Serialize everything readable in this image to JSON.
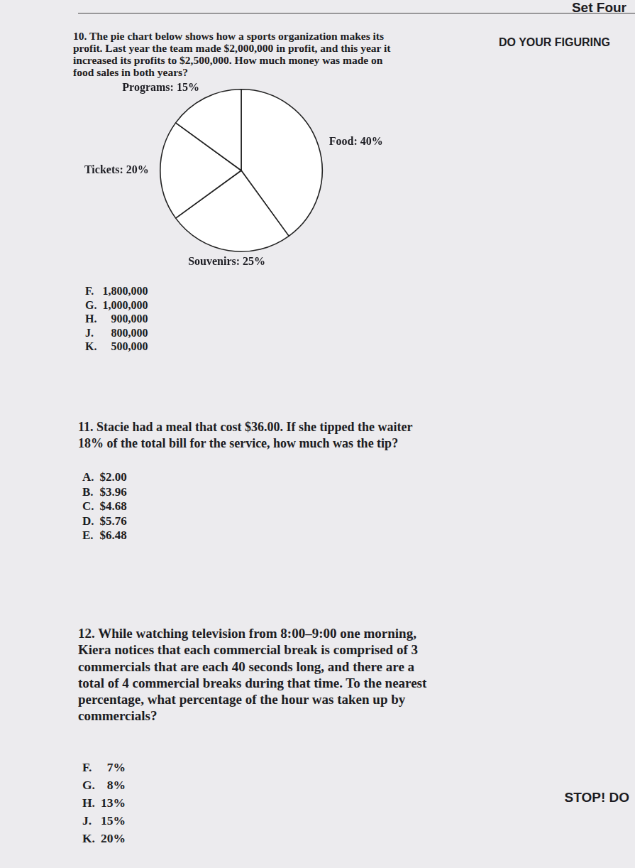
{
  "header": {
    "set": "Set Four",
    "side_note": "DO YOUR FIGURING",
    "stop": "STOP! DO"
  },
  "questions": [
    {
      "number": "10.",
      "text": "The pie chart below shows how a sports organization makes its profit. Last year the team made $2,000,000 in profit, and this year it increased its profits to $2,500,000. How much money was made on food sales in both years?",
      "choices": [
        {
          "letter": "F.",
          "text": "1,800,000"
        },
        {
          "letter": "G.",
          "text": "1,000,000"
        },
        {
          "letter": "H.",
          "text": "900,000"
        },
        {
          "letter": "J.",
          "text": "800,000"
        },
        {
          "letter": "K.",
          "text": "500,000"
        }
      ]
    },
    {
      "number": "11.",
      "text": "Stacie had a meal that cost $36.00. If she tipped the waiter 18% of the total bill for the service, how much was the tip?",
      "choices": [
        {
          "letter": "A.",
          "text": "$2.00"
        },
        {
          "letter": "B.",
          "text": "$3.96"
        },
        {
          "letter": "C.",
          "text": "$4.68"
        },
        {
          "letter": "D.",
          "text": "$5.76"
        },
        {
          "letter": "E.",
          "text": "$6.48"
        }
      ]
    },
    {
      "number": "12.",
      "text": "While watching television from 8:00–9:00 one morning, Kiera notices that each commercial break is comprised of 3 commercials that are each 40 seconds long, and there are a total of 4 commercial breaks during that time. To the nearest percentage, what percentage of the hour was taken up by commercials?",
      "choices": [
        {
          "letter": "F.",
          "text": "7%"
        },
        {
          "letter": "G.",
          "text": "8%"
        },
        {
          "letter": "H.",
          "text": "13%"
        },
        {
          "letter": "J.",
          "text": "15%"
        },
        {
          "letter": "K.",
          "text": "20%"
        }
      ]
    }
  ],
  "chart_data": {
    "type": "pie",
    "categories": [
      "Food",
      "Souvenirs",
      "Tickets",
      "Programs"
    ],
    "values": [
      40,
      25,
      20,
      15
    ],
    "value_labels": [
      "Food: 40%",
      "Souvenirs: 25%",
      "Tickets: 20%",
      "Programs: 15%"
    ],
    "data_labels": true,
    "color": "#ffffff"
  }
}
